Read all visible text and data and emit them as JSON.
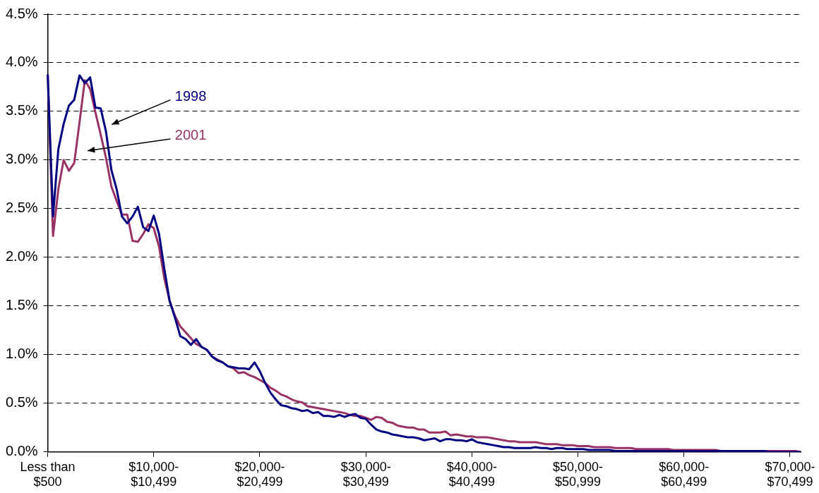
{
  "chart_data": {
    "type": "line",
    "categories": [
      "Less than\n$500",
      null,
      null,
      null,
      null,
      null,
      null,
      null,
      null,
      null,
      null,
      null,
      null,
      null,
      null,
      null,
      null,
      null,
      null,
      null,
      "$10,000-\n$10,499",
      null,
      null,
      null,
      null,
      null,
      null,
      null,
      null,
      null,
      null,
      null,
      null,
      null,
      null,
      null,
      null,
      null,
      null,
      null,
      "$20,000-\n$20,499",
      null,
      null,
      null,
      null,
      null,
      null,
      null,
      null,
      null,
      null,
      null,
      null,
      null,
      null,
      null,
      null,
      null,
      null,
      null,
      "$30,000-\n$30,499",
      null,
      null,
      null,
      null,
      null,
      null,
      null,
      null,
      null,
      null,
      null,
      null,
      null,
      null,
      null,
      null,
      null,
      null,
      null,
      "$40,000-\n$40,499",
      null,
      null,
      null,
      null,
      null,
      null,
      null,
      null,
      null,
      null,
      null,
      null,
      null,
      null,
      null,
      null,
      null,
      null,
      null,
      "$50,000-\n$50,999",
      null,
      null,
      null,
      null,
      null,
      null,
      null,
      null,
      null,
      null,
      null,
      null,
      null,
      null,
      null,
      null,
      null,
      null,
      null,
      "$60,000-\n$60,499",
      null,
      null,
      null,
      null,
      null,
      null,
      null,
      null,
      null,
      null,
      null,
      null,
      null,
      null,
      null,
      null,
      null,
      null,
      null,
      "$70,000-\n$70,499",
      null,
      null
    ],
    "series": [
      {
        "name": "1998",
        "color": "#000080",
        "values": [
          3.88,
          2.42,
          3.11,
          3.37,
          3.56,
          3.62,
          3.87,
          3.79,
          3.85,
          3.54,
          3.53,
          3.29,
          2.9,
          2.7,
          2.42,
          2.35,
          2.42,
          2.52,
          2.31,
          2.27,
          2.43,
          2.24,
          1.88,
          1.55,
          1.38,
          1.19,
          1.16,
          1.1,
          1.16,
          1.08,
          1.05,
          0.98,
          0.94,
          0.92,
          0.88,
          0.87,
          0.86,
          0.86,
          0.85,
          0.92,
          0.83,
          0.71,
          0.61,
          0.54,
          0.48,
          0.47,
          0.45,
          0.44,
          0.42,
          0.43,
          0.4,
          0.41,
          0.37,
          0.37,
          0.36,
          0.38,
          0.36,
          0.38,
          0.39,
          0.35,
          0.34,
          0.28,
          0.23,
          0.21,
          0.2,
          0.18,
          0.17,
          0.16,
          0.15,
          0.15,
          0.14,
          0.12,
          0.13,
          0.14,
          0.11,
          0.13,
          0.13,
          0.12,
          0.12,
          0.11,
          0.13,
          0.1,
          0.09,
          0.08,
          0.07,
          0.06,
          0.05,
          0.05,
          0.04,
          0.04,
          0.04,
          0.04,
          0.05,
          0.04,
          0.04,
          0.03,
          0.04,
          0.04,
          0.03,
          0.03,
          0.03,
          0.03,
          0.02,
          0.02,
          0.02,
          0.02,
          0.02,
          0.01,
          0.01,
          0.01,
          0.01,
          0.01,
          0.01,
          0.01,
          0.01,
          0.01,
          0.01,
          0.01,
          0.01,
          0.01,
          0.01,
          0.01,
          0.01,
          0.01,
          0.01,
          0.01,
          0.01,
          0.01,
          0.01,
          0.01,
          0.01,
          0.01,
          0.01,
          0.01,
          0.01,
          0.01,
          0,
          0,
          0,
          0,
          0,
          0,
          0
        ]
      },
      {
        "name": "2001",
        "color": "#993366",
        "values": [
          3.88,
          2.22,
          2.7,
          3.0,
          2.89,
          2.97,
          3.39,
          3.82,
          3.73,
          3.49,
          3.26,
          3.02,
          2.73,
          2.58,
          2.44,
          2.44,
          2.17,
          2.16,
          2.24,
          2.34,
          2.3,
          2.11,
          1.78,
          1.55,
          1.4,
          1.29,
          1.23,
          1.17,
          1.11,
          1.08,
          1.05,
          0.98,
          0.95,
          0.92,
          0.88,
          0.86,
          0.81,
          0.82,
          0.79,
          0.77,
          0.74,
          0.71,
          0.66,
          0.63,
          0.59,
          0.57,
          0.54,
          0.52,
          0.51,
          0.47,
          0.46,
          0.45,
          0.44,
          0.43,
          0.42,
          0.41,
          0.4,
          0.38,
          0.37,
          0.37,
          0.35,
          0.33,
          0.36,
          0.35,
          0.31,
          0.3,
          0.27,
          0.26,
          0.25,
          0.25,
          0.23,
          0.23,
          0.2,
          0.2,
          0.2,
          0.21,
          0.17,
          0.18,
          0.17,
          0.16,
          0.16,
          0.15,
          0.15,
          0.15,
          0.14,
          0.13,
          0.12,
          0.11,
          0.11,
          0.1,
          0.1,
          0.1,
          0.1,
          0.09,
          0.08,
          0.08,
          0.08,
          0.07,
          0.07,
          0.07,
          0.06,
          0.06,
          0.06,
          0.05,
          0.05,
          0.05,
          0.05,
          0.04,
          0.04,
          0.04,
          0.04,
          0.03,
          0.03,
          0.03,
          0.03,
          0.03,
          0.03,
          0.03,
          0.02,
          0.02,
          0.02,
          0.02,
          0.02,
          0.02,
          0.02,
          0.02,
          0.02,
          0.01,
          0.01,
          0.01,
          0.01,
          0.01,
          0.01,
          0.01,
          0.01,
          0.01,
          0.01,
          0.01,
          0.01,
          0.01,
          0.01,
          0.01,
          0
        ]
      }
    ],
    "ylim": [
      0,
      4.5
    ],
    "yticks": [
      {
        "value": 0,
        "label": "0.0%"
      },
      {
        "value": 0.5,
        "label": "0.5%"
      },
      {
        "value": 1,
        "label": "1.0%"
      },
      {
        "value": 1.5,
        "label": "1.5%"
      },
      {
        "value": 2,
        "label": "2.0%"
      },
      {
        "value": 2.5,
        "label": "2.5%"
      },
      {
        "value": 3,
        "label": "3.0%"
      },
      {
        "value": 3.5,
        "label": "3.5%"
      },
      {
        "value": 4,
        "label": "4.0%"
      },
      {
        "value": 4.5,
        "label": "4.5%"
      }
    ],
    "grid": "y",
    "legend": false,
    "marker": "none",
    "line_style": "solid"
  }
}
